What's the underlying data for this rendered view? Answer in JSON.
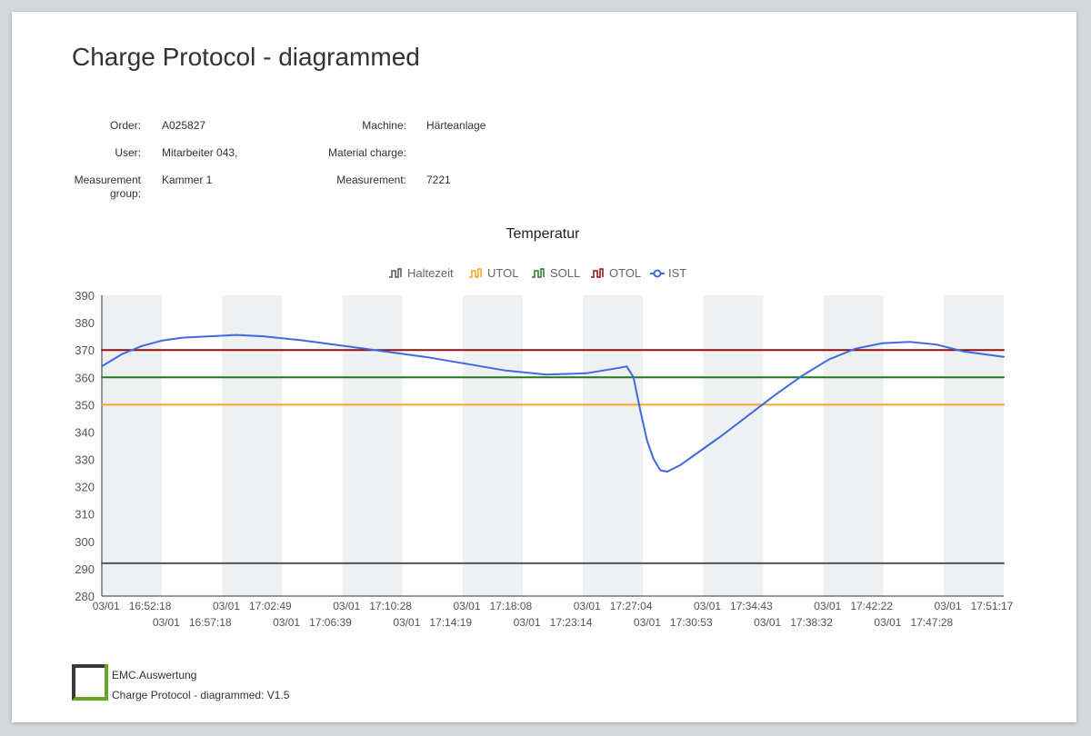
{
  "report": {
    "title": "Charge Protocol - diagrammed",
    "fields": {
      "order_label": "Order:",
      "order_value": "A025827",
      "user_label": "User:",
      "user_value": "Mitarbeiter 043,",
      "group_label_1": "Measurement",
      "group_label_2": "group:",
      "group_value": "Kammer 1",
      "machine_label": "Machine:",
      "machine_value": "Härteanlage",
      "material_label": "Material charge:",
      "material_value": "",
      "measurement_label": "Measurement:",
      "measurement_value": "7221"
    }
  },
  "colors": {
    "haltezeit": "#555555",
    "utol": "#f5a623",
    "soll": "#1e7b1e",
    "otol": "#8b1010",
    "ist": "#4169e1",
    "band": "#eef0f2"
  },
  "chart_data": {
    "type": "line",
    "title": "Temperatur",
    "legend": [
      "Haltezeit",
      "UTOL",
      "SOLL",
      "OTOL",
      "IST"
    ],
    "legend_icons": [
      "step-icon",
      "step-icon",
      "step-icon",
      "step-icon",
      "circle-line-icon"
    ],
    "legend_position": "top-center",
    "ylim": [
      280,
      390
    ],
    "yticks": [
      280,
      290,
      300,
      310,
      320,
      330,
      340,
      350,
      360,
      370,
      380,
      390
    ],
    "xlim": [
      "16:48:00",
      "17:55:00"
    ],
    "xticks": [
      {
        "date": "03/01",
        "time": "16:52:18"
      },
      {
        "date": "03/01",
        "time": "16:57:18"
      },
      {
        "date": "03/01",
        "time": "17:02:49"
      },
      {
        "date": "03/01",
        "time": "17:06:39"
      },
      {
        "date": "03/01",
        "time": "17:10:28"
      },
      {
        "date": "03/01",
        "time": "17:14:19"
      },
      {
        "date": "03/01",
        "time": "17:18:08"
      },
      {
        "date": "03/01",
        "time": "17:23:14"
      },
      {
        "date": "03/01",
        "time": "17:27:04"
      },
      {
        "date": "03/01",
        "time": "17:30:53"
      },
      {
        "date": "03/01",
        "time": "17:34:43"
      },
      {
        "date": "03/01",
        "time": "17:38:32"
      },
      {
        "date": "03/01",
        "time": "17:42:22"
      },
      {
        "date": "03/01",
        "time": "17:47:28"
      },
      {
        "date": "03/01",
        "time": "17:51:17"
      }
    ],
    "series": [
      {
        "name": "Haltezeit",
        "x": [
          "16:48:00",
          "17:55:00"
        ],
        "y": [
          292,
          292
        ]
      },
      {
        "name": "UTOL",
        "x": [
          "16:48:00",
          "17:55:00"
        ],
        "y": [
          350,
          350
        ]
      },
      {
        "name": "SOLL",
        "x": [
          "16:48:00",
          "17:55:00"
        ],
        "y": [
          360,
          360
        ]
      },
      {
        "name": "OTOL",
        "x": [
          "16:48:00",
          "17:55:00"
        ],
        "y": [
          370,
          370
        ]
      },
      {
        "name": "IST",
        "x": [
          "16:48:00",
          "16:49:30",
          "16:51:00",
          "16:52:30",
          "16:54:00",
          "16:56:00",
          "16:58:00",
          "17:00:00",
          "17:03:00",
          "17:06:00",
          "17:09:00",
          "17:12:00",
          "17:15:00",
          "17:18:00",
          "17:21:00",
          "17:24:00",
          "17:26:30",
          "17:27:00",
          "17:27:30",
          "17:28:00",
          "17:28:30",
          "17:29:00",
          "17:29:30",
          "17:30:00",
          "17:31:00",
          "17:32:00",
          "17:34:00",
          "17:36:00",
          "17:38:00",
          "17:40:00",
          "17:42:00",
          "17:44:00",
          "17:46:00",
          "17:48:00",
          "17:50:00",
          "17:52:00",
          "17:55:00"
        ],
        "y": [
          364,
          368.5,
          371.5,
          373.5,
          374.5,
          375,
          375.5,
          375,
          373.5,
          371.5,
          369.5,
          367.5,
          365,
          362.5,
          361,
          361.5,
          363.5,
          364,
          360,
          348,
          337,
          330,
          326,
          325.5,
          328,
          331.5,
          338.5,
          346,
          353.5,
          360.5,
          366.5,
          370.5,
          372.5,
          373,
          372,
          369.5,
          367.5
        ]
      }
    ]
  },
  "footer": {
    "app_name": "EMC.Auswertung",
    "version_text": "Charge Protocol - diagrammed: V1.5"
  }
}
